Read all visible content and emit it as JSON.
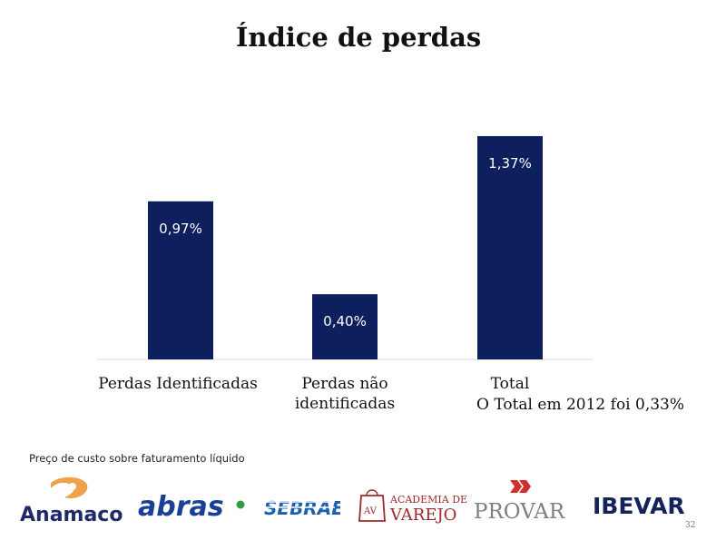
{
  "title": "Índice de perdas",
  "chart_data": {
    "type": "bar",
    "title": "Índice de perdas",
    "categories": [
      "Perdas Identificadas",
      "Perdas não identificadas",
      "Total"
    ],
    "category_lines": [
      [
        "Perdas Identificadas"
      ],
      [
        "Perdas não",
        "identificadas"
      ],
      [
        "Total"
      ]
    ],
    "values": [
      0.97,
      0.4,
      1.37
    ],
    "value_labels": [
      "0,97%",
      "0,40%",
      "1,37%"
    ],
    "unit": "%",
    "ylim": [
      0,
      1.37
    ],
    "bar_color": "#0d1f5c",
    "grid": false,
    "legend": "none"
  },
  "note": "O Total em 2012 foi 0,33%",
  "footnote": "Preço de custo sobre faturamento líquido",
  "page_number": "32",
  "logos": {
    "anamaco": "Anamaco",
    "abras": "abras",
    "sebrae": "SEBRAE",
    "academia_line1": "ACADEMIA DE",
    "academia_line2": "VAREJO",
    "academia_mark": "AV",
    "provar": "PROVAR",
    "ibevar": "IBEVAR"
  },
  "colors": {
    "navy": "#0d1f5c",
    "anamaco_orange": "#f0a24a",
    "anamaco_navy": "#1f2a6b",
    "abras_blue": "#1a3f96",
    "abras_green": "#2e9e44",
    "sebrae_blue": "#1b5fae",
    "academia_red": "#9c2a2a",
    "provar_red": "#d0302e",
    "provar_gray": "#7b7f86",
    "ibevar_navy": "#14245a"
  }
}
